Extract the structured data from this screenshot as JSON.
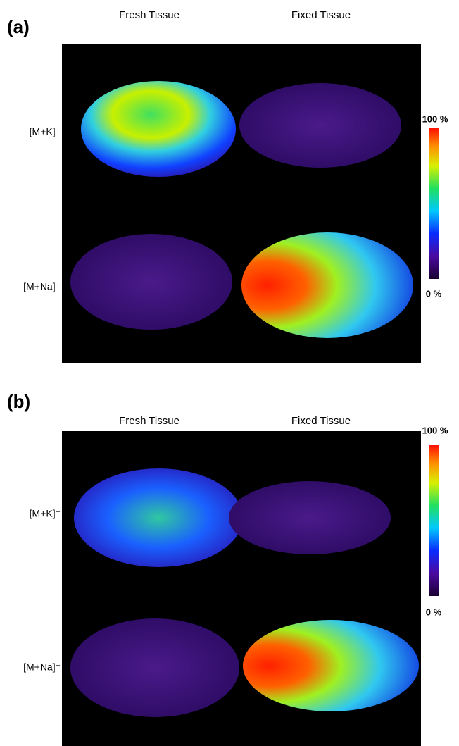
{
  "panels": [
    {
      "label": "(a)",
      "columns": [
        "Fresh Tissue",
        "Fixed Tissue"
      ],
      "rows": [
        "[M+K]⁺",
        "[M+Na]⁺"
      ],
      "colorbar": {
        "max": "100 %",
        "min": "0 %"
      }
    },
    {
      "label": "(b)",
      "columns": [
        "Fresh Tissue",
        "Fixed Tissue"
      ],
      "rows": [
        "[M+K]⁺",
        "[M+Na]⁺"
      ],
      "colorbar": {
        "max": "100 %",
        "min": "0 %"
      }
    }
  ]
}
